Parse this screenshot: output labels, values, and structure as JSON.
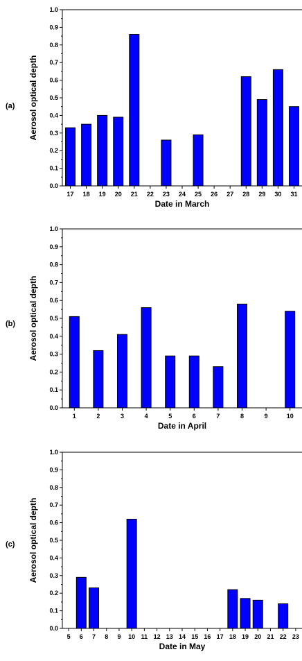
{
  "bar_color": "#0000ff",
  "chart_data": [
    {
      "type": "bar",
      "panel_label": "(a)",
      "xlabel": "Date in March",
      "ylabel": "Aerosol optical depth",
      "ylim": [
        0,
        1.0
      ],
      "yticks": [
        "0.0",
        "0.1",
        "0.2",
        "0.3",
        "0.4",
        "0.5",
        "0.6",
        "0.7",
        "0.8",
        "0.9",
        "1.0"
      ],
      "categories": [
        "17",
        "18",
        "19",
        "20",
        "21",
        "22",
        "23",
        "24",
        "25",
        "26",
        "27",
        "28",
        "29",
        "30",
        "31"
      ],
      "values": [
        0.33,
        0.35,
        0.4,
        0.39,
        0.86,
        null,
        0.26,
        null,
        0.29,
        null,
        null,
        0.62,
        0.49,
        0.66,
        0.45
      ]
    },
    {
      "type": "bar",
      "panel_label": "(b)",
      "xlabel": "Date in April",
      "ylabel": "Aerosol optical depth",
      "ylim": [
        0,
        1.0
      ],
      "yticks": [
        "0.0",
        "0.1",
        "0.2",
        "0.3",
        "0.4",
        "0.5",
        "0.6",
        "0.7",
        "0.8",
        "0.9",
        "1.0"
      ],
      "categories": [
        "1",
        "2",
        "3",
        "4",
        "5",
        "6",
        "7",
        "8",
        "9",
        "10"
      ],
      "values": [
        0.51,
        0.32,
        0.41,
        0.56,
        0.29,
        0.29,
        0.23,
        0.58,
        null,
        0.54
      ]
    },
    {
      "type": "bar",
      "panel_label": "(c)",
      "xlabel": "Date in May",
      "ylabel": "Aerosol optical depth",
      "ylim": [
        0,
        1.0
      ],
      "yticks": [
        "0.0",
        "0.1",
        "0.2",
        "0.3",
        "0.4",
        "0.5",
        "0.6",
        "0.7",
        "0.8",
        "0.9",
        "1.0"
      ],
      "categories": [
        "5",
        "6",
        "7",
        "8",
        "9",
        "10",
        "11",
        "12",
        "13",
        "14",
        "15",
        "16",
        "17",
        "18",
        "19",
        "20",
        "21",
        "22",
        "23"
      ],
      "values": [
        null,
        0.29,
        0.23,
        null,
        null,
        0.62,
        null,
        null,
        null,
        null,
        null,
        null,
        null,
        0.22,
        0.17,
        0.16,
        null,
        0.14,
        null
      ]
    }
  ]
}
